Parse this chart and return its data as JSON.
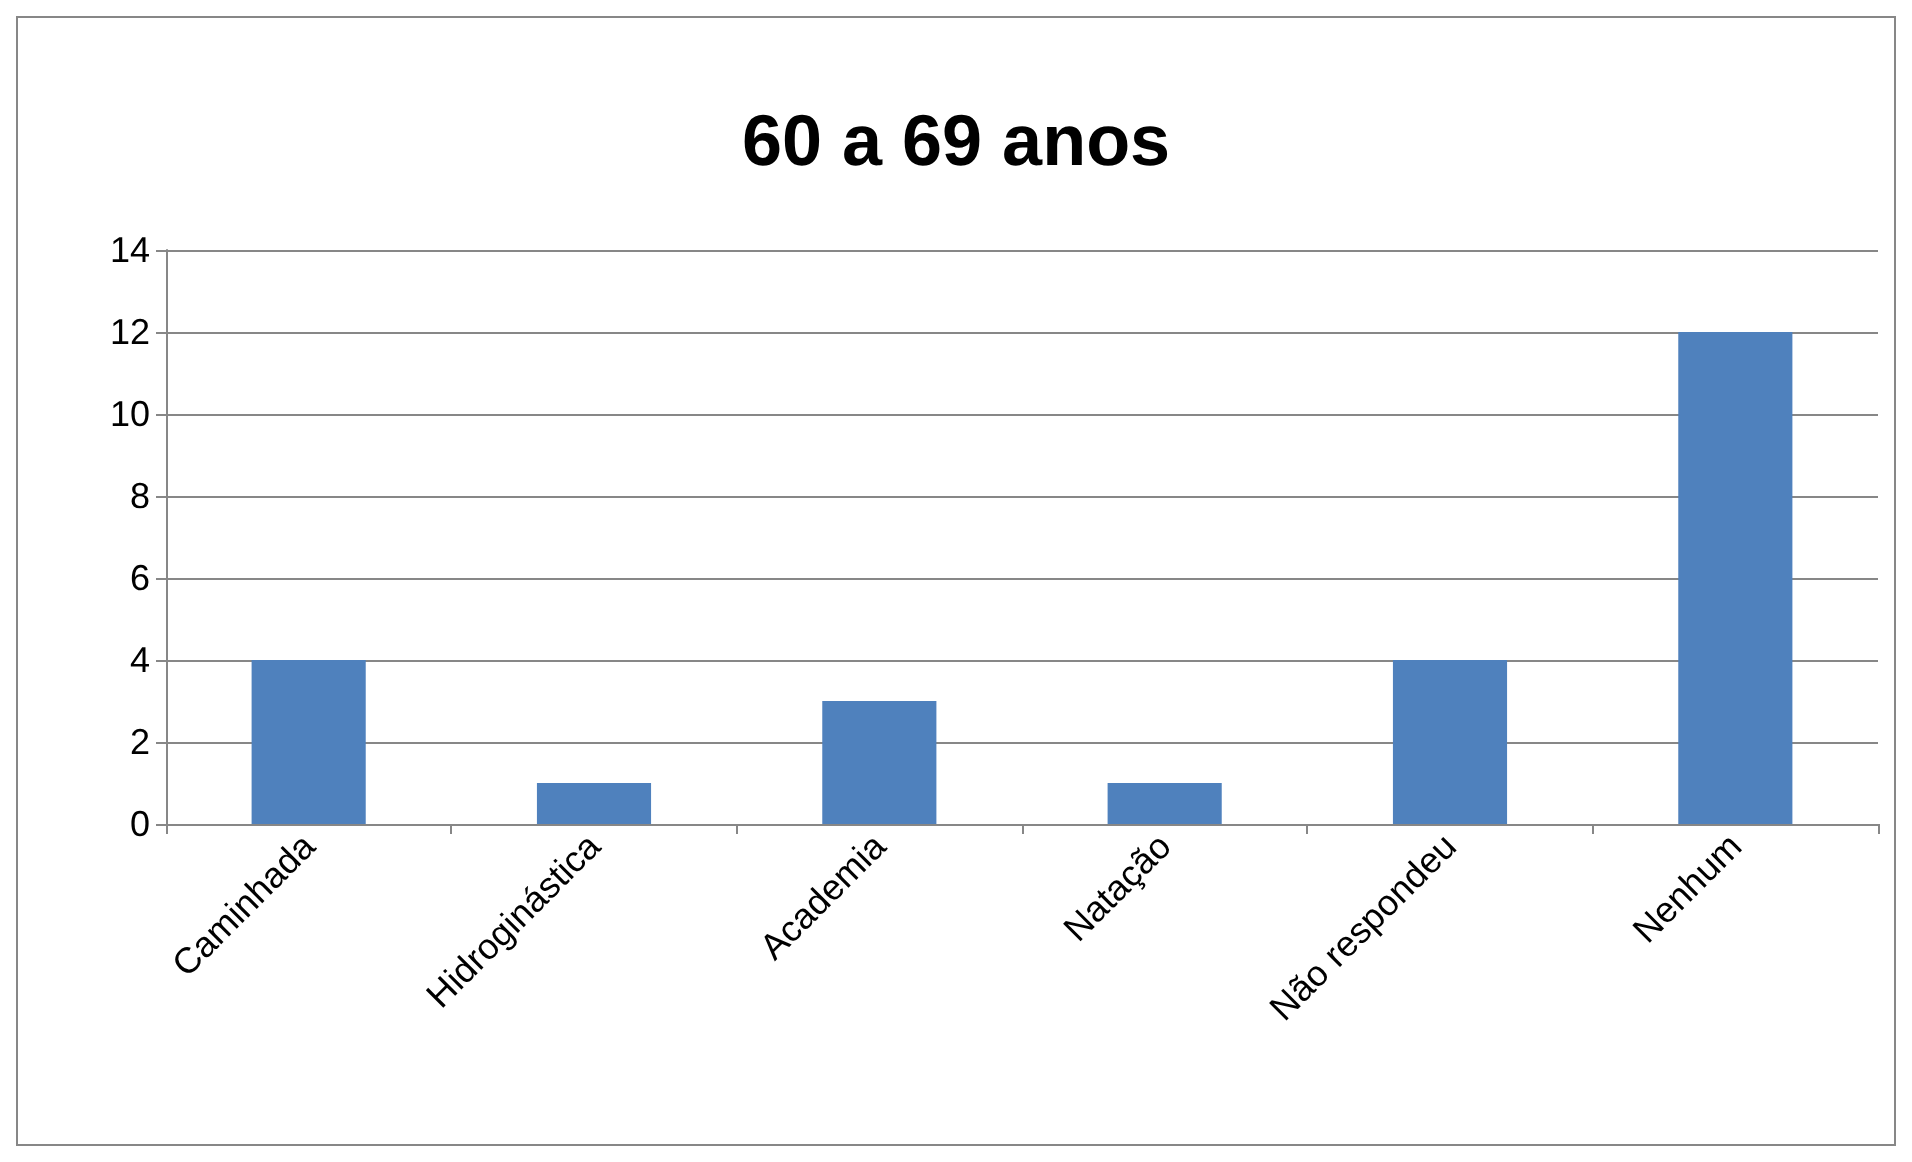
{
  "chart_data": {
    "type": "bar",
    "title": "60 a 69 anos",
    "categories": [
      "Caminhada",
      "Hidroginástica",
      "Academia",
      "Natação",
      "Não respondeu",
      "Nenhum"
    ],
    "values": [
      4,
      1,
      3,
      1,
      4,
      12
    ],
    "color": "#4f81bd",
    "ylim": [
      0,
      14
    ],
    "yticks": [
      0,
      2,
      4,
      6,
      8,
      10,
      12,
      14
    ],
    "grid": "y"
  }
}
